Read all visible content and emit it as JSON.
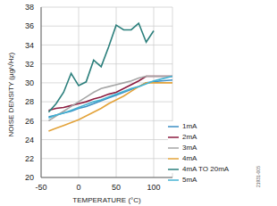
{
  "chart_data": {
    "type": "line",
    "x_label": "TEMPERATURE (°C)",
    "y_label": "NOISE DENSITY (µg/√Hz)",
    "annotation": "21931-005",
    "x": [
      -40,
      -30,
      -20,
      -10,
      0,
      10,
      20,
      30,
      40,
      50,
      60,
      70,
      80,
      90,
      100,
      110,
      125
    ],
    "xlim": [
      -50,
      125
    ],
    "xticks": [
      -50,
      0,
      50,
      100
    ],
    "ylim": [
      20,
      38
    ],
    "yticks": [
      20,
      22,
      24,
      26,
      28,
      30,
      32,
      34,
      36,
      38
    ],
    "grid": true,
    "legend": "lower right",
    "series": [
      {
        "name": "1mA",
        "color": "#3d8fc4",
        "values": [
          26.4,
          26.6,
          26.8,
          27.0,
          27.3,
          27.5,
          27.8,
          28.1,
          28.4,
          28.7,
          29.0,
          29.3,
          29.6,
          30.0,
          30.1,
          30.2,
          30.3
        ]
      },
      {
        "name": "2mA",
        "color": "#8c1d40",
        "values": [
          27.1,
          27.3,
          27.4,
          27.6,
          27.8,
          28.0,
          28.3,
          28.5,
          28.8,
          29.0,
          29.4,
          29.8,
          30.2,
          30.7,
          30.7,
          30.7,
          30.7
        ]
      },
      {
        "name": "3mA",
        "color": "#a6a6a6",
        "values": [
          26.0,
          26.5,
          27.0,
          27.5,
          28.0,
          28.5,
          29.0,
          29.4,
          29.6,
          29.8,
          30.0,
          30.2,
          30.5,
          30.7,
          30.7,
          30.7,
          30.7
        ]
      },
      {
        "name": "4mA",
        "color": "#e3a33a",
        "values": [
          24.9,
          25.2,
          25.5,
          25.8,
          26.1,
          26.5,
          26.9,
          27.3,
          27.8,
          28.2,
          28.6,
          29.1,
          29.6,
          30.0,
          30.0,
          30.0,
          30.0
        ]
      },
      {
        "name": "5mA",
        "color": "#45b3d3",
        "values": [
          26.3,
          26.6,
          26.8,
          27.1,
          27.4,
          27.7,
          28.0,
          28.2,
          28.5,
          28.8,
          29.1,
          29.4,
          29.6,
          29.9,
          30.2,
          30.4,
          30.7
        ]
      },
      {
        "name": "4mA TO 20mA",
        "color": "#2b7f7c",
        "values": [
          26.9,
          27.8,
          29.0,
          31.0,
          29.7,
          30.1,
          32.4,
          31.7,
          33.8,
          36.1,
          35.6,
          35.6,
          36.3,
          34.3,
          35.5,
          null,
          null
        ]
      }
    ]
  }
}
